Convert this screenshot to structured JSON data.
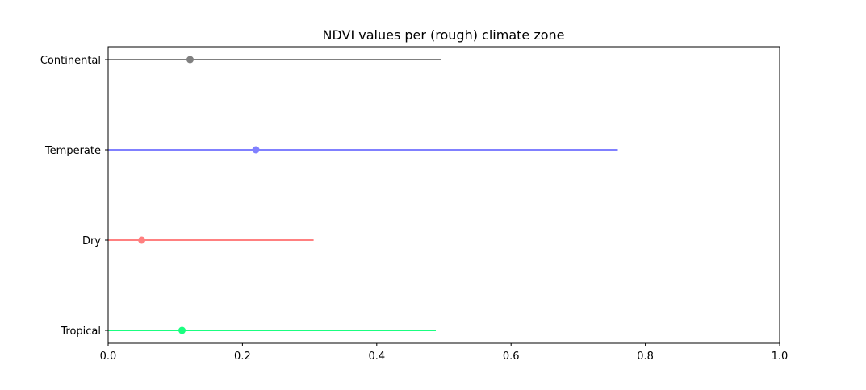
{
  "chart_data": {
    "type": "range",
    "title": "NDVI values per (rough) climate zone",
    "xlabel": "",
    "ylabel": "",
    "xlim": [
      0.0,
      1.0
    ],
    "xticks": [
      "0.0",
      "0.2",
      "0.4",
      "0.6",
      "0.8",
      "1.0"
    ],
    "categories": [
      "Tropical",
      "Dry",
      "Temperate",
      "Continental"
    ],
    "series": [
      {
        "category": "Tropical",
        "min": 0.0,
        "max": 0.488,
        "point": 0.11,
        "color": "#1aff80"
      },
      {
        "category": "Dry",
        "min": 0.0,
        "max": 0.306,
        "point": 0.05,
        "color": "#ff8080"
      },
      {
        "category": "Temperate",
        "min": 0.0,
        "max": 0.759,
        "point": 0.22,
        "color": "#8080ff"
      },
      {
        "category": "Continental",
        "min": 0.0,
        "max": 0.496,
        "point": 0.122,
        "color": "#808080"
      }
    ],
    "grid": false,
    "legend": "none"
  }
}
